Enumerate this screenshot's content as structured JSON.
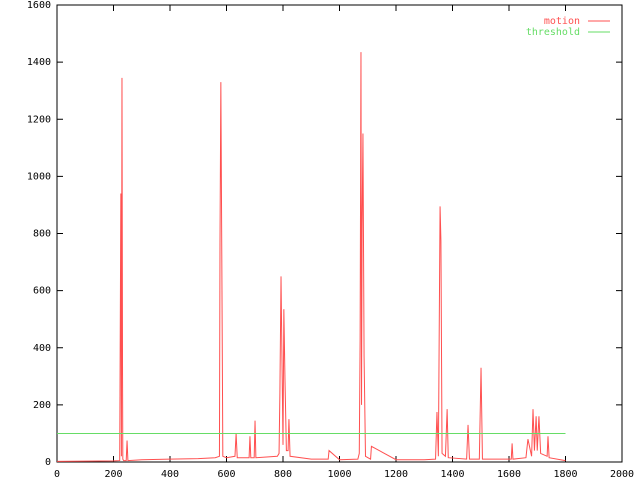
{
  "chart_data": {
    "type": "line",
    "series": [
      {
        "name": "motion",
        "color": "#ff5050",
        "x": [
          0,
          100,
          200,
          222,
          226,
          228,
          230,
          232,
          233,
          236,
          245,
          248,
          251,
          300,
          400,
          500,
          560,
          575,
          577,
          580,
          584,
          587,
          600,
          630,
          634,
          638,
          680,
          683,
          686,
          698,
          701,
          704,
          780,
          786,
          789,
          793,
          796,
          800,
          803,
          807,
          812,
          818,
          821,
          825,
          900,
          960,
          963,
          1000,
          1065,
          1070,
          1073,
          1076,
          1078,
          1080,
          1083,
          1087,
          1092,
          1110,
          1113,
          1200,
          1300,
          1340,
          1345,
          1350,
          1356,
          1359,
          1363,
          1375,
          1381,
          1385,
          1450,
          1455,
          1460,
          1495,
          1501,
          1506,
          1550,
          1608,
          1611,
          1614,
          1660,
          1667,
          1680,
          1685,
          1690,
          1696,
          1700,
          1706,
          1712,
          1735,
          1738,
          1742,
          1800
        ],
        "values": [
          2,
          3,
          4,
          5,
          940,
          20,
          1345,
          305,
          10,
          5,
          5,
          75,
          5,
          8,
          10,
          12,
          15,
          20,
          770,
          1330,
          600,
          20,
          15,
          20,
          100,
          15,
          15,
          90,
          15,
          15,
          145,
          15,
          20,
          30,
          240,
          650,
          390,
          60,
          535,
          290,
          40,
          40,
          150,
          20,
          10,
          10,
          40,
          8,
          10,
          30,
          430,
          1435,
          200,
          820,
          1150,
          370,
          20,
          10,
          55,
          8,
          8,
          10,
          175,
          20,
          895,
          775,
          30,
          20,
          185,
          15,
          10,
          130,
          10,
          10,
          330,
          10,
          10,
          10,
          65,
          10,
          15,
          80,
          20,
          185,
          40,
          160,
          40,
          160,
          30,
          20,
          90,
          15,
          5
        ]
      },
      {
        "name": "threshold",
        "color": "#66dd66",
        "x": [
          0,
          1800
        ],
        "values": [
          100,
          100
        ]
      }
    ],
    "xlim": [
      0,
      2000
    ],
    "xticks": [
      0,
      200,
      400,
      600,
      800,
      1000,
      1200,
      1400,
      1600,
      1800,
      2000
    ],
    "ylim": [
      0,
      1600
    ],
    "yticks": [
      0,
      200,
      400,
      600,
      800,
      1000,
      1200,
      1400,
      1600
    ],
    "legend": "top-right"
  }
}
